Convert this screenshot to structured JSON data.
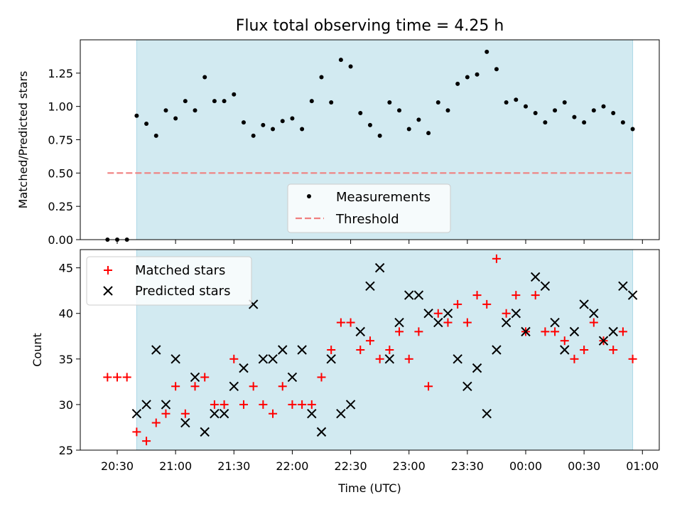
{
  "chart_data": [
    {
      "type": "scatter",
      "title": "Flux total observing time = 4.25 h",
      "ylabel": "Matched/Predicted stars",
      "xlabel": "",
      "ylim": [
        0,
        1.5
      ],
      "yticks": [
        "0.00",
        "0.25",
        "0.50",
        "0.75",
        "1.00",
        "1.25"
      ],
      "highlight_span": [
        "20:40",
        "00:55"
      ],
      "legend_position": "lower center",
      "series": [
        {
          "name": "Measurements",
          "color": "#000000",
          "marker": "dot",
          "points": [
            [
              "20:25",
              0.0
            ],
            [
              "20:30",
              0.0
            ],
            [
              "20:35",
              0.0
            ],
            [
              "20:40",
              0.93
            ],
            [
              "20:45",
              0.87
            ],
            [
              "20:50",
              0.78
            ],
            [
              "20:55",
              0.97
            ],
            [
              "21:00",
              0.91
            ],
            [
              "21:05",
              1.04
            ],
            [
              "21:10",
              0.97
            ],
            [
              "21:15",
              1.22
            ],
            [
              "21:20",
              1.04
            ],
            [
              "21:25",
              1.04
            ],
            [
              "21:30",
              1.09
            ],
            [
              "21:35",
              0.88
            ],
            [
              "21:40",
              0.78
            ],
            [
              "21:45",
              0.86
            ],
            [
              "21:50",
              0.83
            ],
            [
              "21:55",
              0.89
            ],
            [
              "22:00",
              0.91
            ],
            [
              "22:05",
              0.83
            ],
            [
              "22:10",
              1.04
            ],
            [
              "22:15",
              1.22
            ],
            [
              "22:20",
              1.03
            ],
            [
              "22:25",
              1.35
            ],
            [
              "22:30",
              1.3
            ],
            [
              "22:35",
              0.95
            ],
            [
              "22:40",
              0.86
            ],
            [
              "22:45",
              0.78
            ],
            [
              "22:50",
              1.03
            ],
            [
              "22:55",
              0.97
            ],
            [
              "23:00",
              0.83
            ],
            [
              "23:05",
              0.9
            ],
            [
              "23:10",
              0.8
            ],
            [
              "23:15",
              1.03
            ],
            [
              "23:20",
              0.97
            ],
            [
              "23:25",
              1.17
            ],
            [
              "23:30",
              1.22
            ],
            [
              "23:35",
              1.24
            ],
            [
              "23:40",
              1.41
            ],
            [
              "23:45",
              1.28
            ],
            [
              "23:50",
              1.03
            ],
            [
              "23:55",
              1.05
            ],
            [
              "00:00",
              1.0
            ],
            [
              "00:05",
              0.95
            ],
            [
              "00:10",
              0.88
            ],
            [
              "00:15",
              0.97
            ],
            [
              "00:20",
              1.03
            ],
            [
              "00:25",
              0.92
            ],
            [
              "00:30",
              0.88
            ],
            [
              "00:35",
              0.97
            ],
            [
              "00:40",
              1.0
            ],
            [
              "00:45",
              0.95
            ],
            [
              "00:50",
              0.88
            ],
            [
              "00:55",
              0.83
            ]
          ]
        },
        {
          "name": "Threshold",
          "color": "#f08080",
          "style": "dashed",
          "points": [
            [
              "20:25",
              0.5
            ],
            [
              "00:55",
              0.5
            ]
          ]
        }
      ]
    },
    {
      "type": "scatter",
      "title": "",
      "ylabel": "Count",
      "xlabel": "Time (UTC)",
      "ylim": [
        25,
        47
      ],
      "yticks": [
        "25",
        "30",
        "35",
        "40",
        "45"
      ],
      "xticks": [
        "20:30",
        "21:00",
        "21:30",
        "22:00",
        "22:30",
        "23:00",
        "23:30",
        "00:00",
        "00:30",
        "01:00"
      ],
      "highlight_span": [
        "20:40",
        "00:55"
      ],
      "legend_position": "upper left",
      "series": [
        {
          "name": "Matched stars",
          "color": "#ff0000",
          "marker": "plus",
          "points": [
            [
              "20:25",
              33
            ],
            [
              "20:30",
              33
            ],
            [
              "20:35",
              33
            ],
            [
              "20:40",
              27
            ],
            [
              "20:45",
              26
            ],
            [
              "20:50",
              28
            ],
            [
              "20:55",
              29
            ],
            [
              "21:00",
              32
            ],
            [
              "21:05",
              29
            ],
            [
              "21:10",
              32
            ],
            [
              "21:15",
              33
            ],
            [
              "21:20",
              30
            ],
            [
              "21:25",
              30
            ],
            [
              "21:30",
              35
            ],
            [
              "21:35",
              30
            ],
            [
              "21:40",
              32
            ],
            [
              "21:45",
              30
            ],
            [
              "21:50",
              29
            ],
            [
              "21:55",
              32
            ],
            [
              "22:00",
              30
            ],
            [
              "22:05",
              30
            ],
            [
              "22:10",
              30
            ],
            [
              "22:15",
              33
            ],
            [
              "22:20",
              36
            ],
            [
              "22:25",
              39
            ],
            [
              "22:30",
              39
            ],
            [
              "22:35",
              36
            ],
            [
              "22:40",
              37
            ],
            [
              "22:45",
              35
            ],
            [
              "22:50",
              36
            ],
            [
              "22:55",
              38
            ],
            [
              "23:00",
              35
            ],
            [
              "23:05",
              38
            ],
            [
              "23:10",
              32
            ],
            [
              "23:15",
              40
            ],
            [
              "23:20",
              39
            ],
            [
              "23:25",
              41
            ],
            [
              "23:30",
              39
            ],
            [
              "23:35",
              42
            ],
            [
              "23:40",
              41
            ],
            [
              "23:45",
              46
            ],
            [
              "23:50",
              40
            ],
            [
              "23:55",
              42
            ],
            [
              "00:00",
              38
            ],
            [
              "00:05",
              42
            ],
            [
              "00:10",
              38
            ],
            [
              "00:15",
              38
            ],
            [
              "00:20",
              37
            ],
            [
              "00:25",
              35
            ],
            [
              "00:30",
              36
            ],
            [
              "00:35",
              39
            ],
            [
              "00:40",
              37
            ],
            [
              "00:45",
              36
            ],
            [
              "00:50",
              38
            ],
            [
              "00:55",
              35
            ]
          ]
        },
        {
          "name": "Predicted stars",
          "color": "#000000",
          "marker": "x",
          "points": [
            [
              "20:40",
              29
            ],
            [
              "20:45",
              30
            ],
            [
              "20:50",
              36
            ],
            [
              "20:55",
              30
            ],
            [
              "21:00",
              35
            ],
            [
              "21:05",
              28
            ],
            [
              "21:10",
              33
            ],
            [
              "21:15",
              27
            ],
            [
              "21:20",
              29
            ],
            [
              "21:25",
              29
            ],
            [
              "21:30",
              32
            ],
            [
              "21:35",
              34
            ],
            [
              "21:40",
              41
            ],
            [
              "21:45",
              35
            ],
            [
              "21:50",
              35
            ],
            [
              "21:55",
              36
            ],
            [
              "22:00",
              33
            ],
            [
              "22:05",
              36
            ],
            [
              "22:10",
              29
            ],
            [
              "22:15",
              27
            ],
            [
              "22:20",
              35
            ],
            [
              "22:25",
              29
            ],
            [
              "22:30",
              30
            ],
            [
              "22:35",
              38
            ],
            [
              "22:40",
              43
            ],
            [
              "22:45",
              45
            ],
            [
              "22:50",
              35
            ],
            [
              "22:55",
              39
            ],
            [
              "23:00",
              42
            ],
            [
              "23:05",
              42
            ],
            [
              "23:10",
              40
            ],
            [
              "23:15",
              39
            ],
            [
              "23:20",
              40
            ],
            [
              "23:25",
              35
            ],
            [
              "23:30",
              32
            ],
            [
              "23:35",
              34
            ],
            [
              "23:40",
              29
            ],
            [
              "23:45",
              36
            ],
            [
              "23:50",
              39
            ],
            [
              "23:55",
              40
            ],
            [
              "00:00",
              38
            ],
            [
              "00:05",
              44
            ],
            [
              "00:10",
              43
            ],
            [
              "00:15",
              39
            ],
            [
              "00:20",
              36
            ],
            [
              "00:25",
              38
            ],
            [
              "00:30",
              41
            ],
            [
              "00:35",
              40
            ],
            [
              "00:40",
              37
            ],
            [
              "00:45",
              38
            ],
            [
              "00:50",
              43
            ],
            [
              "00:55",
              42
            ]
          ]
        }
      ]
    }
  ],
  "colors": {
    "highlight": "#add8e6",
    "threshold": "#f08080",
    "matched": "#ff0000",
    "predicted": "#000000"
  }
}
